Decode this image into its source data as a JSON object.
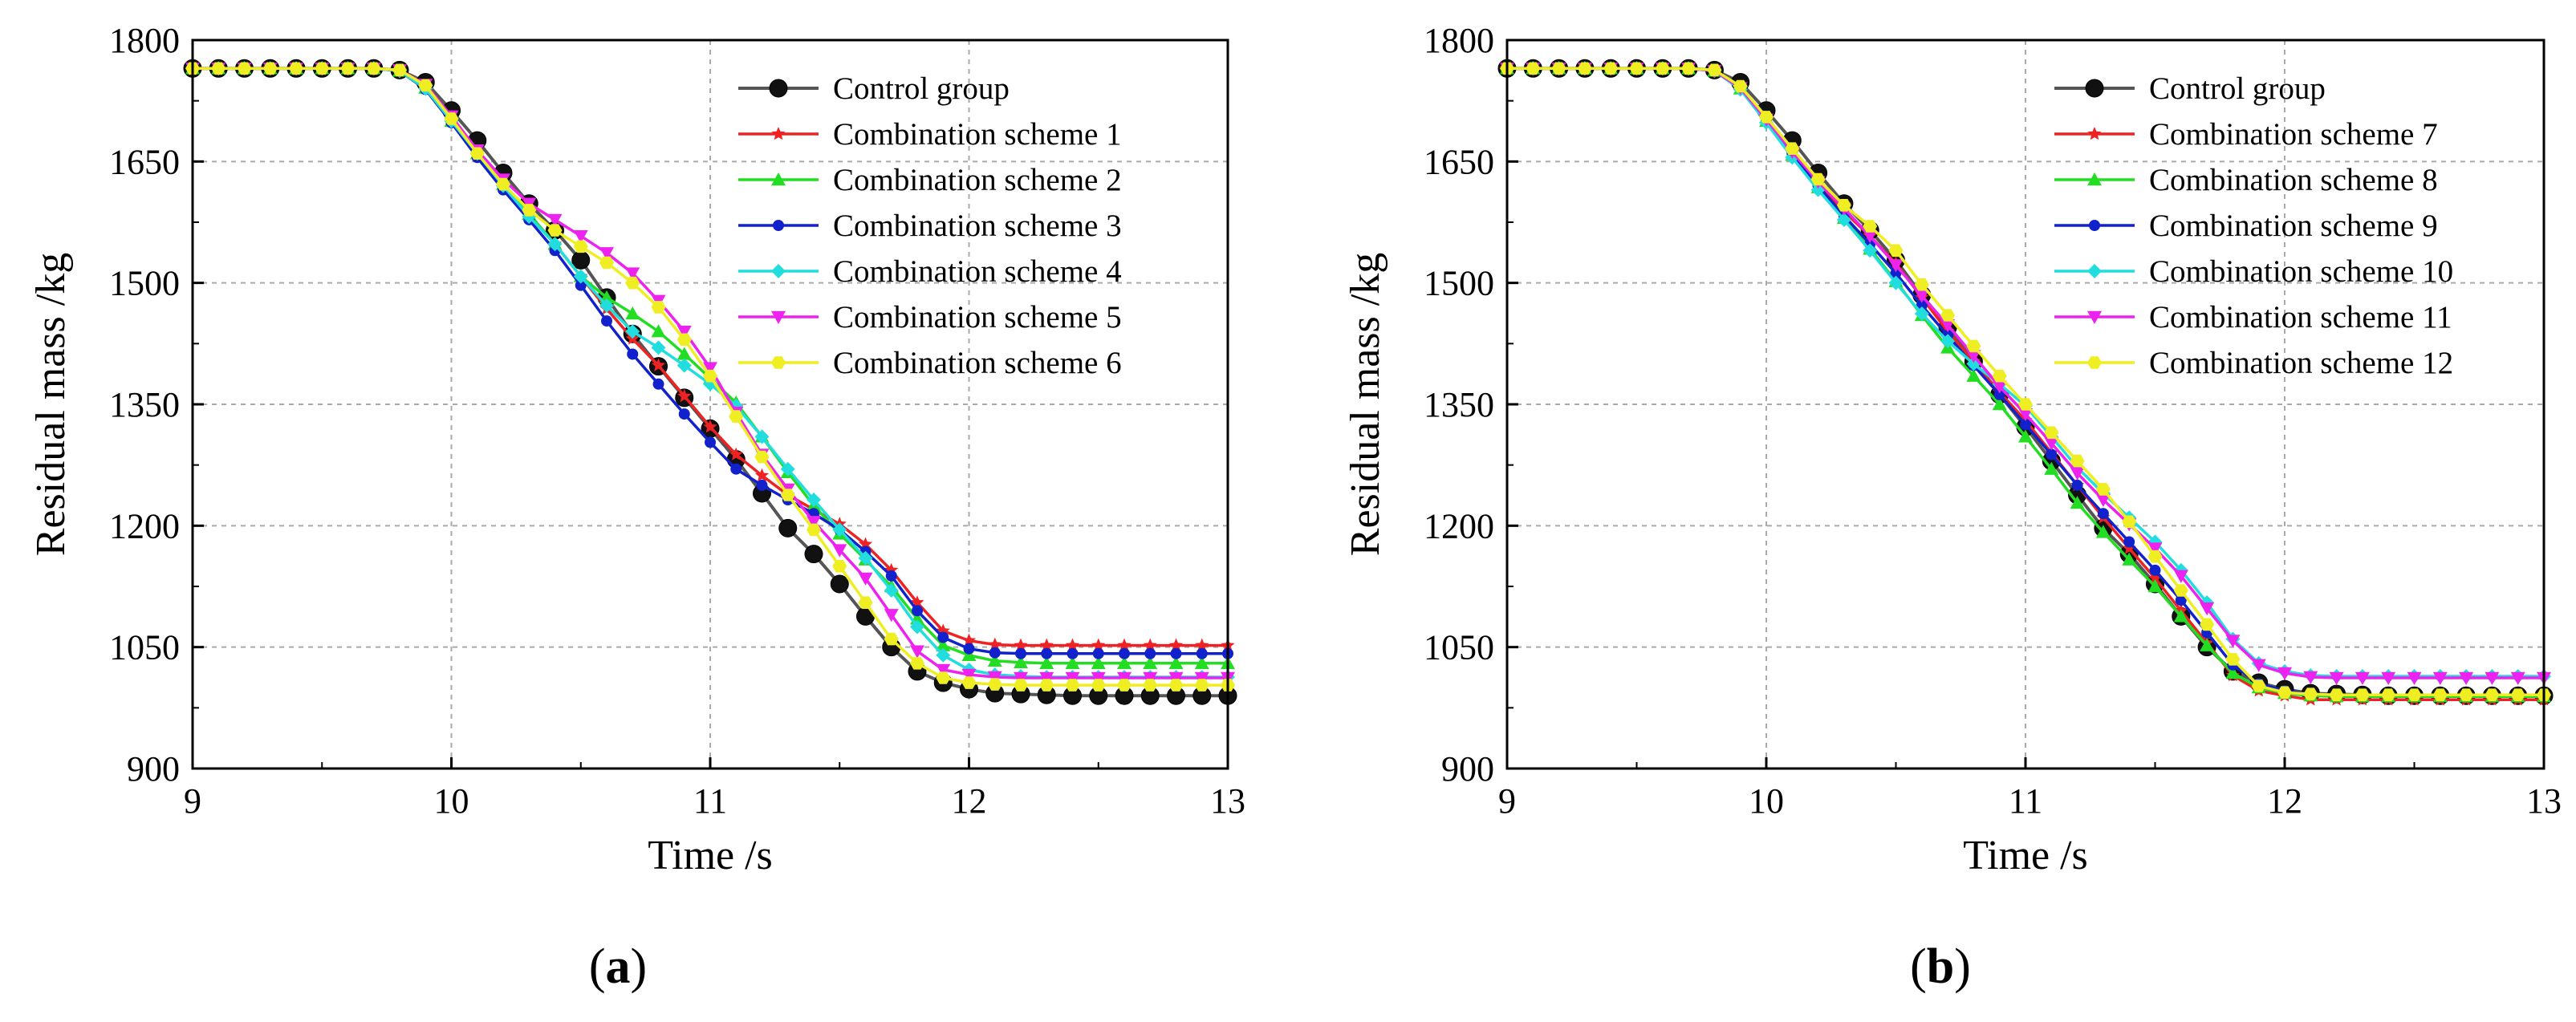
{
  "chart_data": [
    {
      "type": "line",
      "panel_label": "(a)",
      "panel_label_parts": {
        "open": "(",
        "letter": "a",
        "close": ")"
      },
      "xlabel": "Time /s",
      "ylabel": "Residual mass /kg",
      "xlim": [
        9,
        13
      ],
      "ylim": [
        900,
        1800
      ],
      "xticks": [
        9,
        10,
        11,
        12,
        13
      ],
      "yticks": [
        900,
        1050,
        1200,
        1350,
        1500,
        1650,
        1800
      ],
      "grid": true,
      "legend_position": "top-right",
      "x": [
        9.0,
        9.1,
        9.2,
        9.3,
        9.4,
        9.5,
        9.6,
        9.7,
        9.8,
        9.9,
        10.0,
        10.1,
        10.2,
        10.3,
        10.4,
        10.5,
        10.6,
        10.7,
        10.8,
        10.9,
        11.0,
        11.1,
        11.2,
        11.3,
        11.4,
        11.5,
        11.6,
        11.7,
        11.8,
        11.9,
        12.0,
        12.1,
        12.2,
        12.3,
        12.4,
        12.5,
        12.6,
        12.7,
        12.8,
        12.9,
        13.0
      ],
      "series": [
        {
          "name": "Control group",
          "color": "#555555",
          "marker": "ball",
          "values": [
            1765,
            1765,
            1765,
            1765,
            1765,
            1765,
            1765,
            1765,
            1763,
            1748,
            1713,
            1676,
            1636,
            1598,
            1565,
            1528,
            1482,
            1437,
            1397,
            1358,
            1320,
            1282,
            1240,
            1197,
            1165,
            1128,
            1088,
            1050,
            1020,
            1006,
            998,
            993,
            992,
            991,
            990,
            990,
            990,
            990,
            990,
            990,
            990
          ]
        },
        {
          "name": "Combination scheme 1",
          "color": "#ee2222",
          "marker": "star",
          "values": [
            1765,
            1765,
            1765,
            1765,
            1765,
            1765,
            1765,
            1765,
            1762,
            1742,
            1702,
            1661,
            1622,
            1585,
            1548,
            1508,
            1468,
            1431,
            1398,
            1360,
            1322,
            1288,
            1262,
            1238,
            1220,
            1202,
            1177,
            1145,
            1105,
            1070,
            1058,
            1053,
            1052,
            1052,
            1052,
            1052,
            1052,
            1052,
            1052,
            1052,
            1052
          ]
        },
        {
          "name": "Combination scheme 2",
          "color": "#22dd22",
          "marker": "triangle",
          "values": [
            1765,
            1765,
            1765,
            1765,
            1765,
            1765,
            1765,
            1765,
            1762,
            1741,
            1700,
            1660,
            1622,
            1585,
            1548,
            1508,
            1482,
            1462,
            1440,
            1412,
            1382,
            1352,
            1310,
            1266,
            1225,
            1190,
            1158,
            1125,
            1085,
            1052,
            1040,
            1033,
            1031,
            1030,
            1030,
            1030,
            1030,
            1030,
            1030,
            1030,
            1030
          ]
        },
        {
          "name": "Combination scheme 3",
          "color": "#1122cc",
          "marker": "dot",
          "values": [
            1765,
            1765,
            1765,
            1765,
            1765,
            1765,
            1765,
            1765,
            1762,
            1739,
            1698,
            1655,
            1615,
            1578,
            1540,
            1497,
            1453,
            1412,
            1375,
            1338,
            1303,
            1270,
            1250,
            1232,
            1215,
            1195,
            1168,
            1138,
            1095,
            1062,
            1048,
            1043,
            1042,
            1042,
            1042,
            1042,
            1042,
            1042,
            1042,
            1042,
            1042
          ]
        },
        {
          "name": "Combination scheme 4",
          "color": "#22dddd",
          "marker": "diamond",
          "values": [
            1765,
            1765,
            1765,
            1765,
            1765,
            1765,
            1765,
            1765,
            1762,
            1740,
            1700,
            1660,
            1620,
            1582,
            1548,
            1508,
            1472,
            1440,
            1420,
            1398,
            1375,
            1348,
            1310,
            1270,
            1232,
            1195,
            1160,
            1120,
            1075,
            1040,
            1022,
            1016,
            1014,
            1013,
            1013,
            1013,
            1013,
            1013,
            1013,
            1013,
            1013
          ]
        },
        {
          "name": "Combination scheme 5",
          "color": "#ee22ee",
          "marker": "triangle-down",
          "values": [
            1765,
            1765,
            1765,
            1765,
            1765,
            1765,
            1765,
            1765,
            1763,
            1745,
            1706,
            1664,
            1628,
            1598,
            1578,
            1558,
            1537,
            1512,
            1478,
            1440,
            1395,
            1340,
            1288,
            1245,
            1205,
            1170,
            1135,
            1090,
            1045,
            1022,
            1016,
            1013,
            1012,
            1012,
            1012,
            1012,
            1012,
            1012,
            1012,
            1012,
            1012
          ]
        },
        {
          "name": "Combination scheme 6",
          "color": "#eeee22",
          "marker": "hex",
          "values": [
            1765,
            1765,
            1765,
            1765,
            1765,
            1765,
            1765,
            1765,
            1763,
            1744,
            1703,
            1660,
            1622,
            1590,
            1565,
            1545,
            1525,
            1500,
            1470,
            1430,
            1385,
            1335,
            1285,
            1238,
            1195,
            1150,
            1105,
            1060,
            1030,
            1012,
            1006,
            1004,
            1003,
            1003,
            1003,
            1003,
            1003,
            1003,
            1003,
            1003,
            1003
          ]
        }
      ]
    },
    {
      "type": "line",
      "panel_label": "(b)",
      "panel_label_parts": {
        "open": "(",
        "letter": "b",
        "close": ")"
      },
      "xlabel": "Time /s",
      "ylabel": "Residual mass /kg",
      "xlim": [
        9,
        13
      ],
      "ylim": [
        900,
        1800
      ],
      "xticks": [
        9,
        10,
        11,
        12,
        13
      ],
      "yticks": [
        900,
        1050,
        1200,
        1350,
        1500,
        1650,
        1800
      ],
      "grid": true,
      "legend_position": "top-right",
      "x": [
        9.0,
        9.1,
        9.2,
        9.3,
        9.4,
        9.5,
        9.6,
        9.7,
        9.8,
        9.9,
        10.0,
        10.1,
        10.2,
        10.3,
        10.4,
        10.5,
        10.6,
        10.7,
        10.8,
        10.9,
        11.0,
        11.1,
        11.2,
        11.3,
        11.4,
        11.5,
        11.6,
        11.7,
        11.8,
        11.9,
        12.0,
        12.1,
        12.2,
        12.3,
        12.4,
        12.5,
        12.6,
        12.7,
        12.8,
        12.9,
        13.0
      ],
      "series": [
        {
          "name": "Control group",
          "color": "#555555",
          "marker": "ball",
          "values": [
            1765,
            1765,
            1765,
            1765,
            1765,
            1765,
            1765,
            1765,
            1763,
            1748,
            1713,
            1676,
            1636,
            1598,
            1565,
            1528,
            1485,
            1445,
            1403,
            1362,
            1322,
            1280,
            1238,
            1197,
            1165,
            1128,
            1088,
            1050,
            1020,
            1006,
            998,
            993,
            992,
            991,
            990,
            990,
            990,
            990,
            990,
            990,
            990
          ]
        },
        {
          "name": "Combination scheme 7",
          "color": "#ee2222",
          "marker": "star",
          "values": [
            1765,
            1765,
            1765,
            1765,
            1765,
            1765,
            1765,
            1765,
            1762,
            1740,
            1701,
            1661,
            1622,
            1588,
            1558,
            1524,
            1482,
            1440,
            1403,
            1365,
            1330,
            1290,
            1250,
            1210,
            1172,
            1135,
            1095,
            1055,
            1015,
            996,
            990,
            985,
            985,
            985,
            985,
            985,
            985,
            985,
            985,
            985,
            985
          ]
        },
        {
          "name": "Combination scheme 8",
          "color": "#22dd22",
          "marker": "triangle",
          "values": [
            1765,
            1765,
            1765,
            1765,
            1765,
            1765,
            1765,
            1765,
            1762,
            1740,
            1700,
            1658,
            1618,
            1580,
            1542,
            1502,
            1460,
            1420,
            1385,
            1350,
            1310,
            1270,
            1228,
            1192,
            1158,
            1125,
            1088,
            1052,
            1018,
            1000,
            993,
            990,
            989,
            989,
            989,
            989,
            989,
            989,
            989,
            989,
            989
          ]
        },
        {
          "name": "Combination scheme 9",
          "color": "#1122cc",
          "marker": "dot",
          "values": [
            1765,
            1765,
            1765,
            1765,
            1765,
            1765,
            1765,
            1765,
            1762,
            1740,
            1701,
            1660,
            1620,
            1583,
            1548,
            1512,
            1472,
            1435,
            1398,
            1362,
            1325,
            1288,
            1250,
            1215,
            1180,
            1145,
            1108,
            1068,
            1028,
            1005,
            996,
            992,
            991,
            991,
            991,
            991,
            991,
            991,
            991,
            991,
            991
          ]
        },
        {
          "name": "Combination scheme 10",
          "color": "#22dddd",
          "marker": "diamond",
          "values": [
            1765,
            1765,
            1765,
            1765,
            1765,
            1765,
            1765,
            1765,
            1762,
            1739,
            1698,
            1655,
            1615,
            1578,
            1540,
            1500,
            1462,
            1428,
            1400,
            1375,
            1348,
            1310,
            1272,
            1240,
            1210,
            1180,
            1145,
            1105,
            1060,
            1030,
            1020,
            1015,
            1014,
            1014,
            1014,
            1014,
            1014,
            1014,
            1014,
            1014,
            1014
          ]
        },
        {
          "name": "Combination scheme 11",
          "color": "#ee22ee",
          "marker": "triangle-down",
          "values": [
            1765,
            1765,
            1765,
            1765,
            1765,
            1765,
            1765,
            1765,
            1762,
            1741,
            1702,
            1662,
            1625,
            1592,
            1558,
            1522,
            1484,
            1448,
            1410,
            1372,
            1338,
            1302,
            1265,
            1232,
            1202,
            1172,
            1138,
            1098,
            1058,
            1028,
            1018,
            1013,
            1012,
            1012,
            1012,
            1012,
            1012,
            1012,
            1012,
            1012,
            1012
          ]
        },
        {
          "name": "Combination scheme 12",
          "color": "#eeee22",
          "marker": "hex",
          "values": [
            1765,
            1765,
            1765,
            1765,
            1765,
            1765,
            1765,
            1765,
            1763,
            1743,
            1705,
            1666,
            1628,
            1596,
            1570,
            1540,
            1498,
            1460,
            1422,
            1385,
            1350,
            1315,
            1280,
            1245,
            1205,
            1162,
            1120,
            1078,
            1035,
            1002,
            994,
            992,
            991,
            991,
            991,
            991,
            991,
            991,
            991,
            991,
            991
          ]
        }
      ]
    }
  ]
}
